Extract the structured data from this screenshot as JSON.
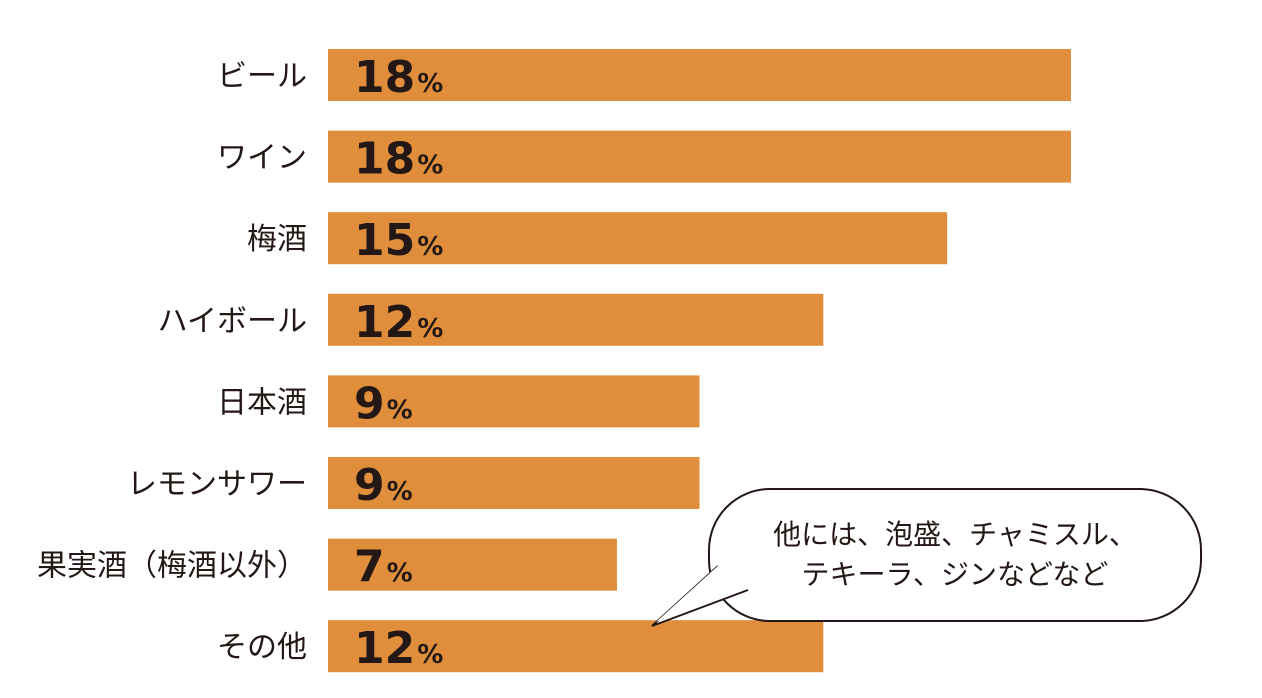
{
  "chart_data": {
    "type": "bar",
    "orientation": "horizontal",
    "categories": [
      "ビール",
      "ワイン",
      "梅酒",
      "ハイボール",
      "日本酒",
      "レモンサワー",
      "果実酒（梅酒以外）",
      "その他"
    ],
    "values": [
      18,
      18,
      15,
      12,
      9,
      9,
      7,
      12
    ],
    "value_unit": "%",
    "xlim": [
      0,
      18
    ],
    "grid": false,
    "legend": "none",
    "bar_color": "#E08E3B",
    "text_color": "#231815",
    "annotation": {
      "lines": [
        "他には、泡盛、チャミスル、",
        "テキーラ、ジンなどなど"
      ],
      "target": "その他"
    }
  }
}
